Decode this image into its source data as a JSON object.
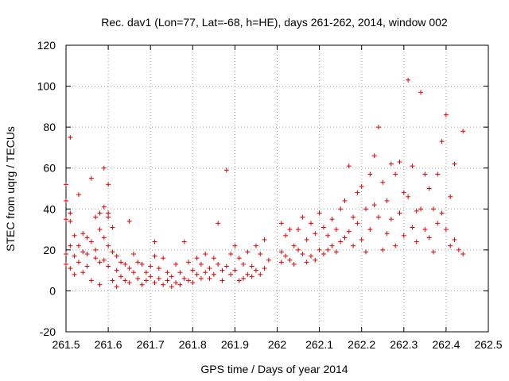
{
  "chart_data": {
    "type": "scatter",
    "title": "Rec. dav1 (Lon=77, Lat=-68, h=HE), days 261-262, 2014, window 002",
    "xlabel": "GPS time / Days of year 2014",
    "ylabel": "STEC from uqrg / TECUs",
    "xlim": [
      261.5,
      262.5
    ],
    "ylim": [
      -20,
      120
    ],
    "xticks": [
      "261.5",
      "261.6",
      "261.7",
      "261.8",
      "261.9",
      "262",
      "262.1",
      "262.2",
      "262.3",
      "262.4",
      "262.5"
    ],
    "yticks": [
      "-20",
      "0",
      "20",
      "40",
      "60",
      "80",
      "100",
      "120"
    ],
    "grid": true,
    "marker": "+",
    "color": "#e00000",
    "series": [
      {
        "name": "STEC",
        "points": [
          [
            261.5,
            52
          ],
          [
            261.5,
            44
          ],
          [
            261.5,
            35
          ],
          [
            261.5,
            18
          ],
          [
            261.5,
            13
          ],
          [
            261.51,
            38
          ],
          [
            261.51,
            75
          ],
          [
            261.51,
            34
          ],
          [
            261.51,
            22
          ],
          [
            261.51,
            11
          ],
          [
            261.52,
            27
          ],
          [
            261.52,
            17
          ],
          [
            261.52,
            8
          ],
          [
            261.53,
            47
          ],
          [
            261.53,
            22
          ],
          [
            261.53,
            14
          ],
          [
            261.54,
            28
          ],
          [
            261.54,
            19
          ],
          [
            261.54,
            9
          ],
          [
            261.55,
            26
          ],
          [
            261.55,
            18
          ],
          [
            261.55,
            12
          ],
          [
            261.56,
            55
          ],
          [
            261.56,
            24
          ],
          [
            261.56,
            5
          ],
          [
            261.57,
            36
          ],
          [
            261.57,
            20
          ],
          [
            261.57,
            16
          ],
          [
            261.58,
            38
          ],
          [
            261.58,
            30
          ],
          [
            261.58,
            14
          ],
          [
            261.58,
            3
          ],
          [
            261.59,
            60
          ],
          [
            261.59,
            41
          ],
          [
            261.59,
            26
          ],
          [
            261.59,
            15
          ],
          [
            261.6,
            52
          ],
          [
            261.6,
            38
          ],
          [
            261.6,
            36
          ],
          [
            261.6,
            22
          ],
          [
            261.6,
            12
          ],
          [
            261.61,
            31
          ],
          [
            261.61,
            19
          ],
          [
            261.61,
            5
          ],
          [
            261.62,
            17
          ],
          [
            261.62,
            10
          ],
          [
            261.62,
            2
          ],
          [
            261.63,
            14
          ],
          [
            261.63,
            7
          ],
          [
            261.64,
            13
          ],
          [
            261.64,
            5
          ],
          [
            261.65,
            34
          ],
          [
            261.65,
            11
          ],
          [
            261.65,
            4
          ],
          [
            261.66,
            18
          ],
          [
            261.66,
            9
          ],
          [
            261.67,
            14
          ],
          [
            261.67,
            6
          ],
          [
            261.68,
            13
          ],
          [
            261.68,
            3
          ],
          [
            261.69,
            9
          ],
          [
            261.69,
            5
          ],
          [
            261.7,
            12
          ],
          [
            261.7,
            7
          ],
          [
            261.71,
            24
          ],
          [
            261.71,
            17
          ],
          [
            261.71,
            4
          ],
          [
            261.72,
            11
          ],
          [
            261.72,
            6
          ],
          [
            261.73,
            16
          ],
          [
            261.73,
            3
          ],
          [
            261.74,
            9
          ],
          [
            261.74,
            5
          ],
          [
            261.75,
            7
          ],
          [
            261.75,
            2
          ],
          [
            261.76,
            13
          ],
          [
            261.76,
            4
          ],
          [
            261.77,
            9
          ],
          [
            261.77,
            3
          ],
          [
            261.78,
            24
          ],
          [
            261.78,
            6
          ],
          [
            261.79,
            14
          ],
          [
            261.79,
            5
          ],
          [
            261.8,
            10
          ],
          [
            261.8,
            4
          ],
          [
            261.81,
            16
          ],
          [
            261.81,
            8
          ],
          [
            261.82,
            13
          ],
          [
            261.82,
            6
          ],
          [
            261.83,
            18
          ],
          [
            261.83,
            9
          ],
          [
            261.84,
            11
          ],
          [
            261.84,
            6
          ],
          [
            261.85,
            16
          ],
          [
            261.85,
            8
          ],
          [
            261.86,
            33
          ],
          [
            261.86,
            13
          ],
          [
            261.87,
            10
          ],
          [
            261.87,
            5
          ],
          [
            261.88,
            59
          ],
          [
            261.88,
            12
          ],
          [
            261.89,
            18
          ],
          [
            261.89,
            8
          ],
          [
            261.9,
            22
          ],
          [
            261.9,
            10
          ],
          [
            261.91,
            16
          ],
          [
            261.91,
            5
          ],
          [
            261.92,
            13
          ],
          [
            261.92,
            6
          ],
          [
            261.93,
            19
          ],
          [
            261.93,
            8
          ],
          [
            261.94,
            12
          ],
          [
            261.94,
            7
          ],
          [
            261.95,
            22
          ],
          [
            261.95,
            10
          ],
          [
            261.96,
            18
          ],
          [
            261.96,
            8
          ],
          [
            261.97,
            25
          ],
          [
            261.97,
            11
          ],
          [
            261.98,
            15
          ],
          [
            262.01,
            33
          ],
          [
            262.01,
            19
          ],
          [
            262.01,
            14
          ],
          [
            262.02,
            27
          ],
          [
            262.02,
            17
          ],
          [
            262.03,
            30
          ],
          [
            262.03,
            15
          ],
          [
            262.04,
            22
          ],
          [
            262.04,
            13
          ],
          [
            262.05,
            30
          ],
          [
            262.05,
            20
          ],
          [
            262.06,
            36
          ],
          [
            262.06,
            18
          ],
          [
            262.07,
            25
          ],
          [
            262.07,
            14
          ],
          [
            262.08,
            33
          ],
          [
            262.08,
            17
          ],
          [
            262.09,
            28
          ],
          [
            262.09,
            15
          ],
          [
            262.1,
            38
          ],
          [
            262.1,
            20
          ],
          [
            262.11,
            31
          ],
          [
            262.11,
            18
          ],
          [
            262.12,
            27
          ],
          [
            262.12,
            20
          ],
          [
            262.13,
            35
          ],
          [
            262.13,
            22
          ],
          [
            262.14,
            30
          ],
          [
            262.14,
            19
          ],
          [
            262.15,
            40
          ],
          [
            262.15,
            24
          ],
          [
            262.16,
            44
          ],
          [
            262.16,
            26
          ],
          [
            262.17,
            61
          ],
          [
            262.17,
            29
          ],
          [
            262.18,
            36
          ],
          [
            262.18,
            22
          ],
          [
            262.19,
            48
          ],
          [
            262.19,
            33
          ],
          [
            262.2,
            51
          ],
          [
            262.2,
            25
          ],
          [
            262.21,
            40
          ],
          [
            262.21,
            19
          ],
          [
            262.22,
            57
          ],
          [
            262.22,
            30
          ],
          [
            262.23,
            66
          ],
          [
            262.23,
            42
          ],
          [
            262.24,
            80
          ],
          [
            262.24,
            36
          ],
          [
            262.25,
            53
          ],
          [
            262.25,
            20
          ],
          [
            262.26,
            44
          ],
          [
            262.26,
            28
          ],
          [
            262.27,
            62
          ],
          [
            262.27,
            35
          ],
          [
            262.28,
            57
          ],
          [
            262.28,
            22
          ],
          [
            262.29,
            63
          ],
          [
            262.29,
            38
          ],
          [
            262.3,
            48
          ],
          [
            262.3,
            27
          ],
          [
            262.31,
            103
          ],
          [
            262.31,
            46
          ],
          [
            262.32,
            61
          ],
          [
            262.32,
            31
          ],
          [
            262.33,
            39
          ],
          [
            262.33,
            24
          ],
          [
            262.34,
            97
          ],
          [
            262.34,
            40
          ],
          [
            262.35,
            57
          ],
          [
            262.35,
            30
          ],
          [
            262.36,
            50
          ],
          [
            262.36,
            26
          ],
          [
            262.37,
            40
          ],
          [
            262.37,
            19
          ],
          [
            262.38,
            57
          ],
          [
            262.38,
            33
          ],
          [
            262.39,
            73
          ],
          [
            262.39,
            38
          ],
          [
            262.4,
            86
          ],
          [
            262.4,
            30
          ],
          [
            262.41,
            46
          ],
          [
            262.41,
            22
          ],
          [
            262.42,
            62
          ],
          [
            262.42,
            25
          ],
          [
            262.43,
            20
          ],
          [
            262.44,
            78
          ],
          [
            262.44,
            18
          ]
        ]
      }
    ]
  }
}
